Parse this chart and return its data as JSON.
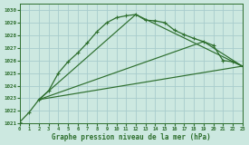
{
  "title": "Graphe pression niveau de la mer (hPa)",
  "background_color": "#cce8e0",
  "grid_color": "#a8cccc",
  "line_color_main": "#2d6e2d",
  "line_color_straight": "#2d6e2d",
  "ylim": [
    1021,
    1030.5
  ],
  "xlim": [
    0,
    23
  ],
  "yticks": [
    1021,
    1022,
    1023,
    1024,
    1025,
    1026,
    1027,
    1028,
    1029,
    1030
  ],
  "xticks": [
    0,
    1,
    2,
    3,
    4,
    5,
    6,
    7,
    8,
    9,
    10,
    11,
    12,
    13,
    14,
    15,
    16,
    17,
    18,
    19,
    20,
    21,
    22,
    23
  ],
  "series_main_x": [
    0,
    1,
    2,
    3,
    4,
    5,
    6,
    7,
    8,
    9,
    10,
    11,
    12,
    13,
    14,
    15,
    16,
    17,
    18,
    19,
    20,
    21,
    22,
    23
  ],
  "series_main_y": [
    1021.1,
    1021.9,
    1022.9,
    1023.6,
    1025.0,
    1025.9,
    1026.6,
    1027.4,
    1028.3,
    1029.0,
    1029.4,
    1029.55,
    1029.65,
    1029.2,
    1029.15,
    1029.0,
    1028.4,
    1028.05,
    1027.75,
    1027.5,
    1027.2,
    1026.0,
    1025.9,
    1025.55
  ],
  "series_line2_x": [
    2,
    23
  ],
  "series_line2_y": [
    1022.9,
    1025.55
  ],
  "series_line3_x": [
    2,
    12,
    19,
    23
  ],
  "series_line3_y": [
    1022.9,
    1029.65,
    1027.5,
    1025.55
  ],
  "series_line4_x": [
    2,
    12,
    19,
    23
  ],
  "series_line4_y": [
    1022.9,
    1029.65,
    1027.5,
    1025.55
  ]
}
